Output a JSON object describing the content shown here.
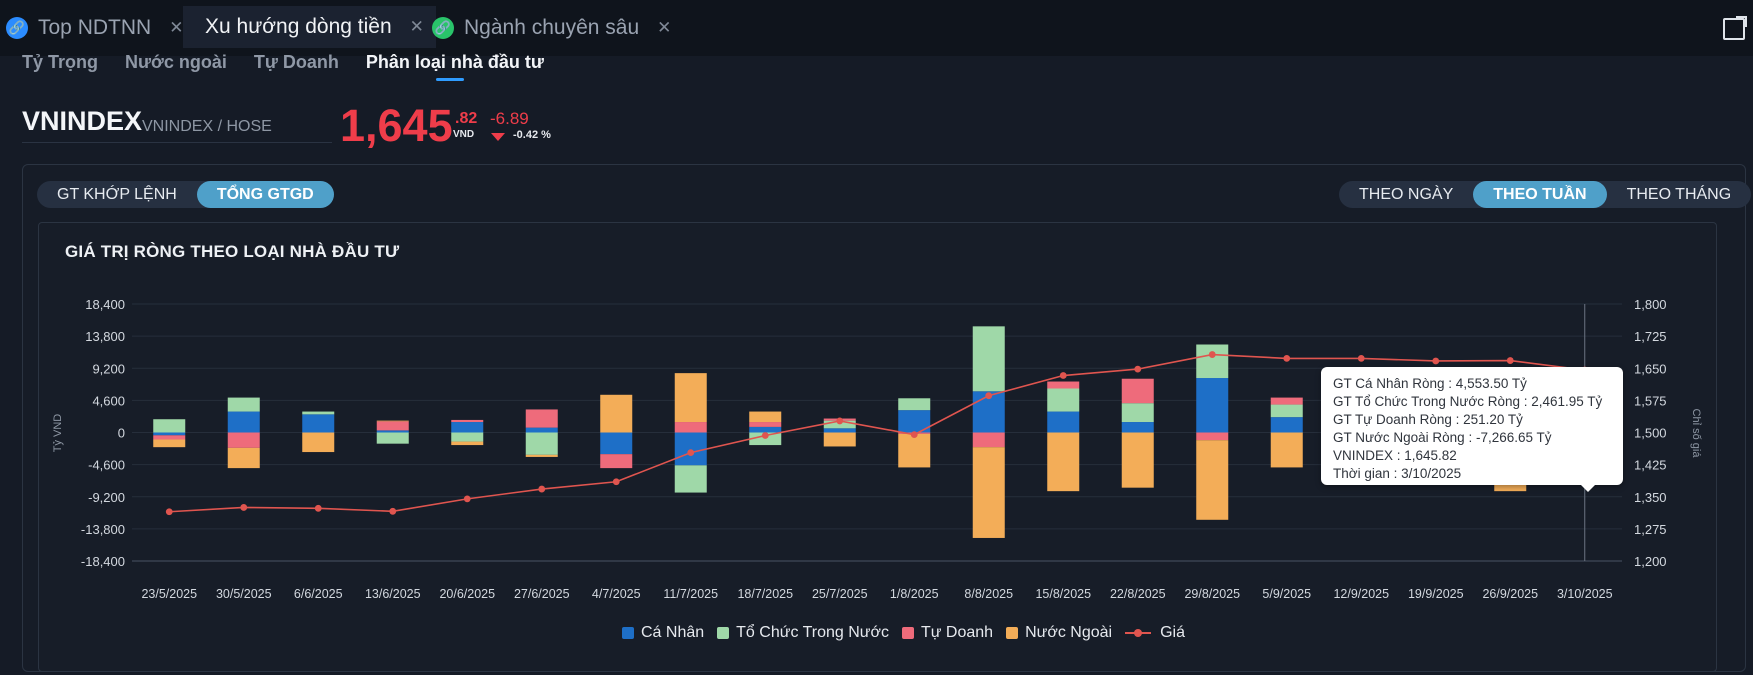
{
  "tabs": [
    {
      "label": "Top NDTNN",
      "active": false,
      "icon": "link-icon",
      "icon_color": "#2b8cff"
    },
    {
      "label": "Xu hướng dòng tiền",
      "active": true
    },
    {
      "label": "Ngành chuyên sâu",
      "active": false,
      "icon": "link-icon",
      "icon_color": "#29c46a"
    }
  ],
  "subnav": [
    "Tỷ Trọng",
    "Nước ngoài",
    "Tự Doanh",
    "Phân loại nhà đầu tư"
  ],
  "subnav_active": 3,
  "ticker": {
    "symbol": "VNINDEX",
    "exchange": "VNINDEX / HOSE",
    "price_int": "1,645",
    "price_dec": ".82",
    "unit": "VND",
    "change": "-6.89",
    "change_pct": "-0.42 %"
  },
  "value_toggle": {
    "options": [
      "GT KHỚP LỆNH",
      "TỔNG GTGD"
    ],
    "selected": 1
  },
  "period_toggle": {
    "options": [
      "THEO NGÀY",
      "THEO TUẦN",
      "THEO THÁNG"
    ],
    "selected": 1
  },
  "colors": {
    "ca_nhan": "#1e6fc7",
    "to_chuc": "#9fd8a8",
    "tu_doanh": "#ee6b7b",
    "nuoc_ngoai": "#f3ad58",
    "gia": "#e0554f",
    "accent": "#4fa0c9",
    "price_red": "#ef3d4a"
  },
  "chart_data": {
    "type": "bar",
    "stacked": true,
    "title": "GIÁ TRỊ RÒNG THEO LOẠI NHÀ ĐẦU TƯ",
    "ylabel": "Tỷ VND",
    "y2label": "Chỉ số giá",
    "ylim": [
      -18400,
      18400
    ],
    "yticks": [
      "18,400",
      "13,800",
      "9,200",
      "4,600",
      "0",
      "-4,600",
      "-9,200",
      "-13,800",
      "-18,400"
    ],
    "y2lim": [
      1200,
      1800
    ],
    "y2ticks": [
      "1,800",
      "1,725",
      "1,650",
      "1,575",
      "1,500",
      "1,425",
      "1,350",
      "1,275",
      "1,200"
    ],
    "grid": true,
    "legend_position": "bottom",
    "categories": [
      "23/5/2025",
      "30/5/2025",
      "6/6/2025",
      "13/6/2025",
      "20/6/2025",
      "27/6/2025",
      "4/7/2025",
      "11/7/2025",
      "18/7/2025",
      "25/7/2025",
      "1/8/2025",
      "8/8/2025",
      "15/8/2025",
      "22/8/2025",
      "29/8/2025",
      "5/9/2025",
      "12/9/2025",
      "19/9/2025",
      "26/9/2025",
      "3/10/2025"
    ],
    "series": [
      {
        "name": "Cá Nhân",
        "values": [
          -400,
          3000,
          2600,
          300,
          1500,
          700,
          -3100,
          -4700,
          800,
          600,
          3200,
          5900,
          3000,
          1500,
          7800,
          2200,
          0,
          0,
          200,
          4553.5
        ]
      },
      {
        "name": "Tổ Chức Trong Nước",
        "values": [
          1900,
          2000,
          400,
          -1600,
          -1300,
          -3200,
          0,
          -3900,
          -1800,
          1100,
          1700,
          9300,
          3300,
          2700,
          4800,
          1800,
          0,
          0,
          -300,
          2461.95
        ]
      },
      {
        "name": "Tự Doanh",
        "values": [
          -600,
          -2200,
          0,
          1300,
          300,
          2600,
          -2000,
          1500,
          700,
          300,
          -200,
          -2100,
          1000,
          3500,
          -1100,
          1000,
          0,
          0,
          200,
          251.2
        ]
      },
      {
        "name": "Nước Ngoài",
        "values": [
          -1100,
          -2900,
          -2800,
          100,
          -500,
          -300,
          5400,
          7000,
          1500,
          -2000,
          -4800,
          -13000,
          -8400,
          -7900,
          -11400,
          -5000,
          0,
          0,
          -8100,
          -7266.65
        ]
      }
    ],
    "line": {
      "name": "Giá",
      "values": [
        1315,
        1325,
        1323,
        1316,
        1345,
        1368,
        1385,
        1453,
        1493,
        1527,
        1495,
        1586,
        1633,
        1648,
        1682,
        1673,
        1673,
        1667,
        1668,
        1645.82
      ]
    }
  },
  "tooltip": {
    "lines": [
      "GT Cá Nhân Ròng  : 4,553.50 Tỷ",
      "GT Tổ Chức Trong Nước Ròng : 2,461.95 Tỷ",
      "GT Tự Doanh Ròng : 251.20 Tỷ",
      "GT Nước Ngoài Ròng : -7,266.65 Tỷ",
      "VNINDEX : 1,645.82",
      "Thời gian : 3/10/2025"
    ]
  }
}
